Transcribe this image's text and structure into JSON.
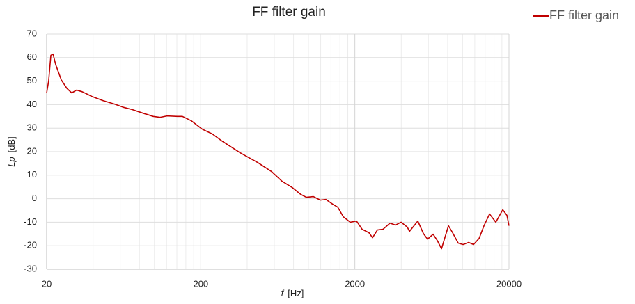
{
  "chart_data": {
    "type": "line",
    "title": "FF filter gain",
    "x_label": {
      "symbol": "f",
      "unit": "[Hz]"
    },
    "y_label": {
      "symbol": "Lp",
      "unit": "[dB]"
    },
    "x_scale": "log",
    "grid": true,
    "legend": "top-right",
    "xlim": [
      20,
      20000
    ],
    "xticks": [
      20,
      200,
      2000,
      20000
    ],
    "ylim": [
      -30,
      70
    ],
    "yticks": [
      -30,
      -20,
      -10,
      0,
      10,
      20,
      30,
      40,
      50,
      60,
      70
    ],
    "x": [
      20,
      20.6,
      21.3,
      22.0,
      22.9,
      24.9,
      27.0,
      29.1,
      31.3,
      34.0,
      39.3,
      46.4,
      55.4,
      63.5,
      71.9,
      84.1,
      98.3,
      109,
      121,
      141,
      152,
      174,
      204,
      238,
      278,
      361,
      468,
      577,
      674,
      787,
      892,
      969,
      1076,
      1194,
      1297,
      1440,
      1549,
      1683,
      1867,
      2050,
      2229,
      2473,
      2604,
      2801,
      3045,
      3380,
      3673,
      3990,
      4381,
      4521,
      5123,
      5567,
      5927,
      6442,
      6856,
      7298,
      8098,
      8618,
      9369,
      10077,
      10951,
      11776,
      12803,
      13768,
      14963,
      16428,
      18231,
      19401,
      20000
    ],
    "series": [
      {
        "name": "FF filter gain",
        "color": "#c00000",
        "values": [
          45,
          50,
          61,
          61.5,
          57,
          50.5,
          47,
          45,
          46.2,
          45.5,
          43.5,
          41.7,
          40.2,
          38.8,
          37.9,
          36.4,
          35,
          34.6,
          35.2,
          35,
          35,
          33.1,
          29.6,
          27.5,
          24.3,
          19.5,
          15.4,
          11.5,
          7.4,
          4.7,
          1.8,
          0.6,
          0.9,
          -0.6,
          -0.3,
          -2.4,
          -3.6,
          -7.7,
          -10,
          -9.5,
          -13,
          -14.5,
          -16.6,
          -13.3,
          -13,
          -10.4,
          -11.2,
          -10,
          -12.1,
          -13.9,
          -9.5,
          -14.8,
          -17.2,
          -15.1,
          -17.8,
          -21.3,
          -11.5,
          -14.5,
          -18.9,
          -19.5,
          -18.6,
          -19.5,
          -16.9,
          -11.5,
          -6.5,
          -10,
          -4.7,
          -7.1,
          -11.5
        ]
      }
    ]
  }
}
